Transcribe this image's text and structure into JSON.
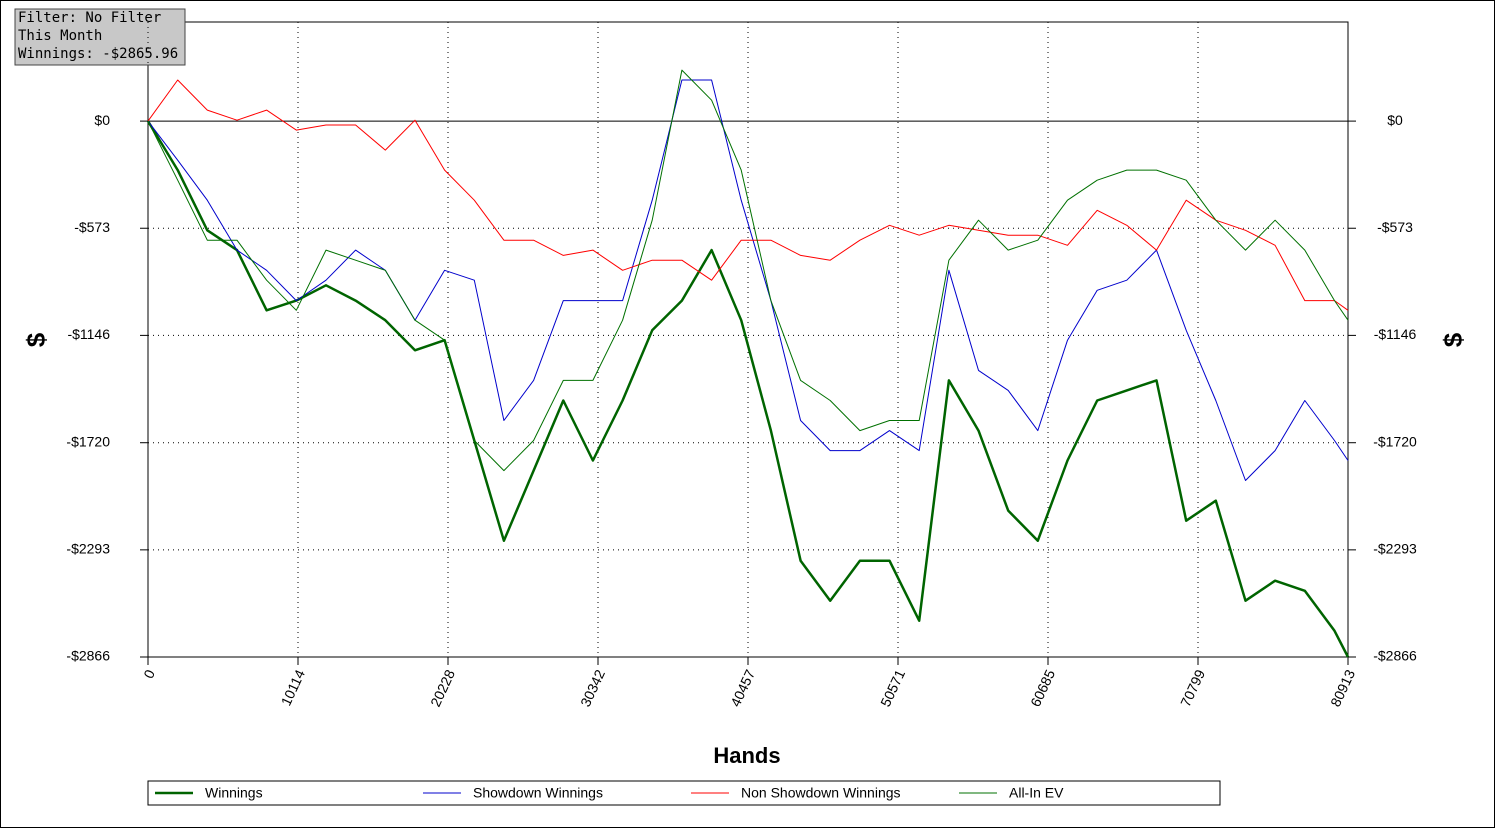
{
  "chart_data": {
    "type": "line",
    "info": [
      "Filter: No Filter",
      "This Month",
      "Winnings: -$2865.96"
    ],
    "xlabel": "Hands",
    "ylabel": "$",
    "xlim": [
      0,
      80913
    ],
    "xticks": [
      0,
      10114,
      20228,
      30342,
      40457,
      50571,
      60685,
      70799,
      80913
    ],
    "ylim": [
      -2866,
      530
    ],
    "yticks": [
      {
        "value": 0,
        "label": "$0"
      },
      {
        "value": -573,
        "label": "-$573"
      },
      {
        "value": -1146,
        "label": "-$1146"
      },
      {
        "value": -1720,
        "label": "-$1720"
      },
      {
        "value": -2293,
        "label": "-$2293"
      },
      {
        "value": -2866,
        "label": "-$2866"
      }
    ],
    "grid": true,
    "legend": "bottom",
    "x": [
      0,
      2000,
      4000,
      6000,
      8000,
      10000,
      12000,
      14000,
      16000,
      18000,
      20000,
      22000,
      24000,
      26000,
      28000,
      30000,
      32000,
      34000,
      36000,
      38000,
      40000,
      42000,
      44000,
      46000,
      48000,
      50000,
      52000,
      54000,
      56000,
      58000,
      60000,
      62000,
      64000,
      66000,
      68000,
      70000,
      72000,
      74000,
      76000,
      78000,
      80000,
      80913
    ],
    "series": [
      {
        "name": "Winnings",
        "color": "#006400",
        "width": 2.5,
        "values": [
          0,
          -262,
          -584,
          -690,
          -1012,
          -960,
          -878,
          -960,
          -1065,
          -1226,
          -1172,
          -1708,
          -2244,
          -1869,
          -1494,
          -1815,
          -1494,
          -1119,
          -960,
          -690,
          -1065,
          -1655,
          -2351,
          -2565,
          -2351,
          -2351,
          -2672,
          -1387,
          -1655,
          -2083,
          -2244,
          -1815,
          -1494,
          -1440,
          -1387,
          -2137,
          -2030,
          -2565,
          -2458,
          -2512,
          -2726,
          -2866
        ]
      },
      {
        "name": "Showdown Winnings",
        "color": "#0000cc",
        "width": 1,
        "values": [
          0,
          -209,
          -423,
          -690,
          -798,
          -960,
          -851,
          -690,
          -798,
          -1065,
          -798,
          -851,
          -1601,
          -1387,
          -960,
          -960,
          -960,
          -423,
          220,
          220,
          -423,
          -960,
          -1601,
          -1762,
          -1762,
          -1655,
          -1762,
          -798,
          -1333,
          -1440,
          -1655,
          -1172,
          -905,
          -851,
          -690,
          -1119,
          -1494,
          -1922,
          -1762,
          -1494,
          -1708,
          -1815
        ]
      },
      {
        "name": "Non Showdown Winnings",
        "color": "#ff0000",
        "width": 1,
        "values": [
          0,
          220,
          59,
          5,
          59,
          -48,
          -21,
          -21,
          -155,
          5,
          -262,
          -423,
          -637,
          -637,
          -718,
          -690,
          -798,
          -744,
          -744,
          -851,
          -637,
          -637,
          -718,
          -744,
          -637,
          -557,
          -610,
          -557,
          -584,
          -610,
          -610,
          -664,
          -477,
          -557,
          -690,
          -423,
          -530,
          -584,
          -664,
          -960,
          -960,
          -1012
        ]
      },
      {
        "name": "All-In EV",
        "color": "#007000",
        "width": 1,
        "values": [
          0,
          -316,
          -637,
          -637,
          -851,
          -1012,
          -690,
          -744,
          -798,
          -1065,
          -1172,
          -1708,
          -1869,
          -1708,
          -1387,
          -1387,
          -1065,
          -530,
          273,
          112,
          -262,
          -960,
          -1387,
          -1494,
          -1655,
          -1601,
          -1601,
          -744,
          -530,
          -690,
          -637,
          -423,
          -316,
          -262,
          -262,
          -316,
          -530,
          -690,
          -530,
          -690,
          -960,
          -1065
        ]
      }
    ]
  }
}
